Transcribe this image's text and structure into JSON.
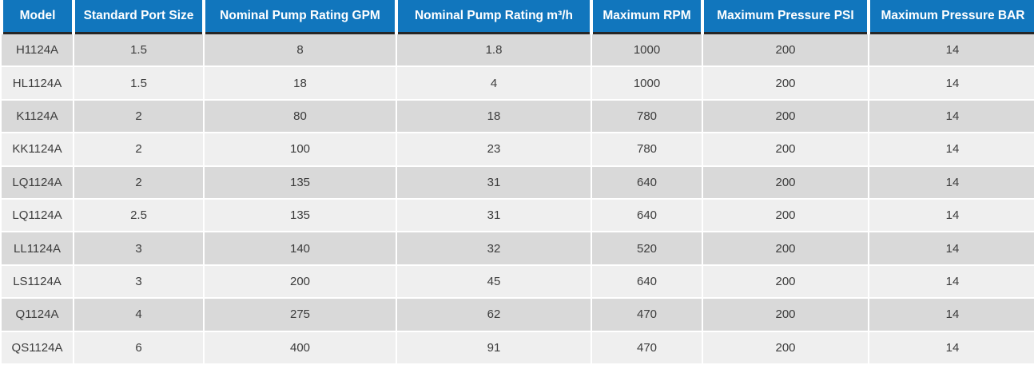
{
  "table": {
    "columns": [
      "Model",
      "Standard Port Size",
      "Nominal Pump Rating GPM",
      "Nominal Pump Rating m³/h",
      "Maximum RPM",
      "Maximum Pressure PSI",
      "Maximum Pressure BAR"
    ],
    "rows": [
      [
        "H1124A",
        "1.5",
        "8",
        "1.8",
        "1000",
        "200",
        "14"
      ],
      [
        "HL1124A",
        "1.5",
        "18",
        "4",
        "1000",
        "200",
        "14"
      ],
      [
        "K1124A",
        "2",
        "80",
        "18",
        "780",
        "200",
        "14"
      ],
      [
        "KK1124A",
        "2",
        "100",
        "23",
        "780",
        "200",
        "14"
      ],
      [
        "LQ1124A",
        "2",
        "135",
        "31",
        "640",
        "200",
        "14"
      ],
      [
        "LQ1124A",
        "2.5",
        "135",
        "31",
        "640",
        "200",
        "14"
      ],
      [
        "LL1124A",
        "3",
        "140",
        "32",
        "520",
        "200",
        "14"
      ],
      [
        "LS1124A",
        "3",
        "200",
        "45",
        "640",
        "200",
        "14"
      ],
      [
        "Q1124A",
        "4",
        "275",
        "62",
        "470",
        "200",
        "14"
      ],
      [
        "QS1124A",
        "6",
        "400",
        "91",
        "470",
        "200",
        "14"
      ]
    ]
  },
  "colors": {
    "header_bg": "#1176bd",
    "header_text": "#ffffff",
    "header_rule": "#262626",
    "row_odd_bg": "#d9d9d9",
    "row_even_bg": "#efefef",
    "cell_text": "#3c3c3c",
    "separator": "#ffffff"
  },
  "chart_data": {
    "type": "table",
    "title": "",
    "columns": [
      "Model",
      "Standard Port Size",
      "Nominal Pump Rating GPM",
      "Nominal Pump Rating m³/h",
      "Maximum RPM",
      "Maximum Pressure PSI",
      "Maximum Pressure BAR"
    ],
    "rows": [
      [
        "H1124A",
        1.5,
        8,
        1.8,
        1000,
        200,
        14
      ],
      [
        "HL1124A",
        1.5,
        18,
        4,
        1000,
        200,
        14
      ],
      [
        "K1124A",
        2,
        80,
        18,
        780,
        200,
        14
      ],
      [
        "KK1124A",
        2,
        100,
        23,
        780,
        200,
        14
      ],
      [
        "LQ1124A",
        2,
        135,
        31,
        640,
        200,
        14
      ],
      [
        "LQ1124A",
        2.5,
        135,
        31,
        640,
        200,
        14
      ],
      [
        "LL1124A",
        3,
        140,
        32,
        520,
        200,
        14
      ],
      [
        "LS1124A",
        3,
        200,
        45,
        640,
        200,
        14
      ],
      [
        "Q1124A",
        4,
        275,
        62,
        470,
        200,
        14
      ],
      [
        "QS1124A",
        6,
        400,
        91,
        470,
        200,
        14
      ]
    ]
  }
}
